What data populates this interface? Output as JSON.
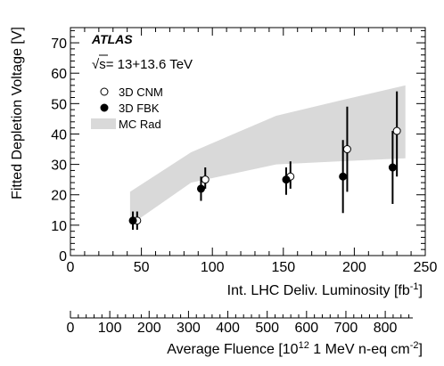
{
  "chart_data": {
    "type": "scatter",
    "experiment_label": "ATLAS",
    "energy_label": "s= 13+13.6 TeV",
    "energy_prefix": "√",
    "xlabel": "Int. LHC Deliv. Luminosity [fb",
    "xlabel_sup": "-1",
    "xlabel_end": "]",
    "ylabel": "Fitted Depletion Voltage [V]",
    "xlim": [
      0,
      250
    ],
    "ylim": [
      0,
      75
    ],
    "x_ticks": [
      "0",
      "50",
      "100",
      "150",
      "200",
      "250"
    ],
    "y_ticks": [
      "0",
      "10",
      "20",
      "30",
      "40",
      "50",
      "60",
      "70"
    ],
    "secondary_axis": {
      "label_prefix": "Average Fluence [10",
      "label_sup1": "12",
      "label_mid": " 1 MeV n-eq cm",
      "label_sup2": "-2",
      "label_end": "]",
      "ticks": [
        "0",
        "100",
        "200",
        "300",
        "400",
        "500",
        "600",
        "700",
        "800"
      ],
      "range": [
        0,
        870
      ]
    },
    "legend": {
      "position": "top-left",
      "entries": [
        "3D CNM",
        "3D FBK",
        "MC Rad"
      ]
    },
    "series": [
      {
        "name": "3D CNM",
        "marker": "open-circle",
        "color": "#000000",
        "points": [
          {
            "x": 47,
            "y": 11.5,
            "ylow": 8.5,
            "yhigh": 14.5
          },
          {
            "x": 95,
            "y": 25,
            "ylow": 22,
            "yhigh": 29
          },
          {
            "x": 155,
            "y": 26,
            "ylow": 22,
            "yhigh": 31
          },
          {
            "x": 195,
            "y": 35,
            "ylow": 21,
            "yhigh": 49
          },
          {
            "x": 230,
            "y": 41,
            "ylow": 26,
            "yhigh": 54
          }
        ]
      },
      {
        "name": "3D FBK",
        "marker": "filled-circle",
        "color": "#000000",
        "points": [
          {
            "x": 44,
            "y": 11.5,
            "ylow": 8.5,
            "yhigh": 14.5
          },
          {
            "x": 92,
            "y": 22,
            "ylow": 18,
            "yhigh": 26
          },
          {
            "x": 152,
            "y": 25,
            "ylow": 20,
            "yhigh": 29
          },
          {
            "x": 192,
            "y": 26,
            "ylow": 14,
            "yhigh": 38
          },
          {
            "x": 227,
            "y": 29,
            "ylow": 17,
            "yhigh": 41
          }
        ]
      }
    ],
    "band": {
      "name": "MC Rad",
      "color": "#d9d9d9",
      "x": [
        42,
        85,
        145,
        190,
        236
      ],
      "low": [
        10,
        24,
        30,
        31,
        32
      ],
      "high": [
        21,
        34,
        46,
        51,
        56
      ]
    }
  }
}
